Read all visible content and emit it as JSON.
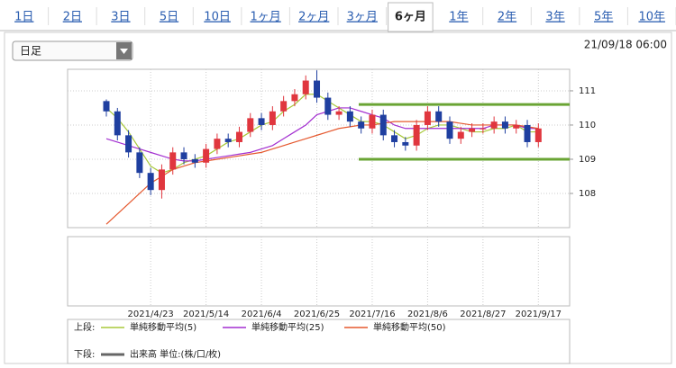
{
  "tabs": [
    "1日",
    "2日",
    "3日",
    "5日",
    "10日",
    "1ヶ月",
    "2ヶ月",
    "3ヶ月",
    "6ヶ月",
    "1年",
    "2年",
    "3年",
    "5年",
    "10年"
  ],
  "active_tab": 8,
  "dropdown": "日足",
  "timestamp": "21/09/18 06:00",
  "chart_data": {
    "type": "candlestick",
    "categories": [
      null,
      null,
      null,
      null,
      "2021/4/23",
      null,
      null,
      null,
      null,
      "2021/5/14",
      null,
      null,
      null,
      null,
      "2021/6/4",
      null,
      null,
      null,
      null,
      "2021/6/25",
      null,
      null,
      null,
      null,
      "2021/7/16",
      null,
      null,
      null,
      null,
      "2021/8/6",
      null,
      null,
      null,
      null,
      "2021/8/27",
      null,
      null,
      null,
      null,
      "2021/9/17"
    ],
    "open": [
      110.7,
      110.4,
      109.7,
      109.2,
      108.6,
      108.1,
      108.7,
      109.2,
      109.0,
      108.9,
      109.3,
      109.6,
      109.5,
      109.8,
      110.2,
      110.0,
      110.4,
      110.7,
      110.9,
      111.3,
      110.8,
      110.3,
      110.4,
      110.1,
      109.9,
      110.3,
      109.7,
      109.5,
      109.4,
      110.0,
      110.4,
      110.1,
      109.6,
      109.8,
      109.9,
      109.9,
      110.1,
      109.9,
      110.0,
      109.5
    ],
    "high": [
      110.75,
      110.5,
      109.85,
      109.35,
      108.75,
      108.85,
      109.35,
      109.35,
      109.15,
      109.45,
      109.75,
      109.75,
      109.95,
      110.35,
      110.35,
      110.55,
      110.85,
      111.05,
      111.45,
      111.6,
      110.95,
      110.55,
      110.55,
      110.25,
      110.45,
      110.45,
      109.85,
      109.65,
      110.15,
      110.55,
      110.55,
      110.25,
      109.95,
      110.05,
      110.05,
      110.25,
      110.25,
      110.15,
      110.15,
      110.05
    ],
    "low": [
      110.25,
      109.55,
      109.05,
      108.45,
      107.95,
      107.85,
      108.55,
      108.85,
      108.75,
      108.75,
      109.15,
      109.35,
      109.35,
      109.65,
      109.85,
      109.85,
      110.25,
      110.55,
      110.75,
      110.65,
      110.15,
      110.15,
      109.95,
      109.75,
      109.75,
      109.55,
      109.35,
      109.25,
      109.25,
      109.85,
      109.95,
      109.45,
      109.45,
      109.65,
      109.75,
      109.75,
      109.75,
      109.75,
      109.35,
      109.35
    ],
    "close": [
      110.4,
      109.7,
      109.2,
      108.6,
      108.1,
      108.7,
      109.2,
      109.0,
      108.9,
      109.3,
      109.6,
      109.5,
      109.8,
      110.2,
      110.0,
      110.4,
      110.7,
      110.9,
      111.3,
      110.8,
      110.3,
      110.4,
      110.1,
      109.9,
      110.3,
      109.7,
      109.5,
      109.4,
      110.0,
      110.4,
      110.1,
      109.6,
      109.8,
      109.9,
      109.9,
      110.1,
      109.9,
      110.0,
      109.5,
      109.9
    ],
    "up_color": "#e0363e",
    "down_color": "#1f3fa0",
    "series": [
      {
        "name": "単純移動平均(5)",
        "color": "#a8c83a",
        "values": [
          110.5,
          110.2,
          109.8,
          109.3,
          108.8,
          108.6,
          108.7,
          108.9,
          109.0,
          109.1,
          109.3,
          109.5,
          109.6,
          109.8,
          110.0,
          110.1,
          110.4,
          110.6,
          110.9,
          110.9,
          110.7,
          110.5,
          110.3,
          110.1,
          110.1,
          110.0,
          109.8,
          109.6,
          109.7,
          109.9,
          110.0,
          110.0,
          109.9,
          109.8,
          109.8,
          109.9,
          109.9,
          110.0,
          109.8,
          109.8
        ]
      },
      {
        "name": "単純移動平均(25)",
        "color": "#a32fd0",
        "values": [
          109.6,
          109.5,
          109.4,
          109.3,
          109.2,
          109.1,
          109.0,
          108.95,
          108.95,
          109.0,
          109.05,
          109.1,
          109.15,
          109.2,
          109.3,
          109.4,
          109.6,
          109.8,
          110.0,
          110.3,
          110.4,
          110.5,
          110.5,
          110.4,
          110.3,
          110.2,
          110.0,
          109.9,
          109.9,
          109.9,
          109.9,
          109.9,
          109.9,
          109.9,
          109.9,
          110.0,
          110.0,
          110.0,
          109.9,
          109.9
        ]
      },
      {
        "name": "単純移動平均(50)",
        "color": "#e5582e",
        "values": [
          107.1,
          107.4,
          107.7,
          108.0,
          108.3,
          108.5,
          108.7,
          108.8,
          108.9,
          108.95,
          109.0,
          109.05,
          109.1,
          109.15,
          109.2,
          109.3,
          109.4,
          109.5,
          109.6,
          109.7,
          109.8,
          109.9,
          109.95,
          110.0,
          110.0,
          110.05,
          110.1,
          110.1,
          110.1,
          110.1,
          110.1,
          110.1,
          110.05,
          110.0,
          110.0,
          110.0,
          110.0,
          110.0,
          109.95,
          109.9
        ]
      }
    ],
    "levels": [
      110.6,
      109.0
    ],
    "level_color": "#6aa434",
    "ylim": [
      107,
      111.63
    ],
    "yticks": [
      108,
      109,
      110,
      111
    ],
    "grid": true,
    "legend_upper": "上段:",
    "legend_lower": "下段:",
    "volume_label": "出来高 単位:(株/口/枚)"
  }
}
